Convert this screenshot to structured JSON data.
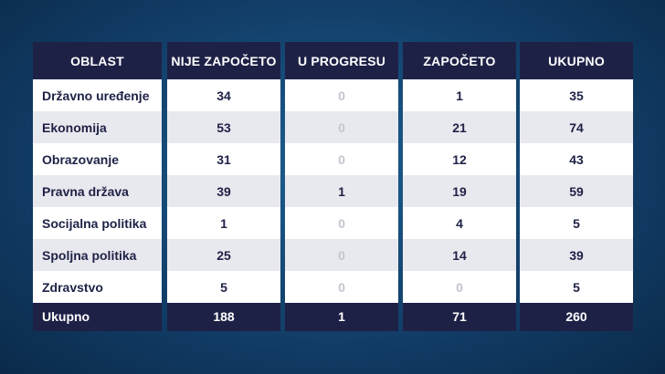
{
  "headers": [
    "OBLAST",
    "NIJE ZAPOČETO",
    "U PROGRESU",
    "ZAPOČETO",
    "UKUPNO"
  ],
  "rows": [
    {
      "label": "Državno uređenje",
      "values": [
        "34",
        "0",
        "1",
        "35"
      ]
    },
    {
      "label": "Ekonomija",
      "values": [
        "53",
        "0",
        "21",
        "74"
      ]
    },
    {
      "label": "Obrazovanje",
      "values": [
        "31",
        "0",
        "12",
        "43"
      ]
    },
    {
      "label": "Pravna država",
      "values": [
        "39",
        "1",
        "19",
        "59"
      ]
    },
    {
      "label": "Socijalna politika",
      "values": [
        "1",
        "0",
        "4",
        "5"
      ]
    },
    {
      "label": "Spoljna politika",
      "values": [
        "25",
        "0",
        "14",
        "39"
      ]
    },
    {
      "label": "Zdravstvo",
      "values": [
        "5",
        "0",
        "0",
        "5"
      ]
    }
  ],
  "totals": {
    "label": "Ukupno",
    "values": [
      "188",
      "1",
      "71",
      "260"
    ]
  },
  "colors": {
    "header_bg": "#1e2146",
    "muted_zero": "#c4c6ce",
    "row_alt": "#e8e9ee"
  }
}
